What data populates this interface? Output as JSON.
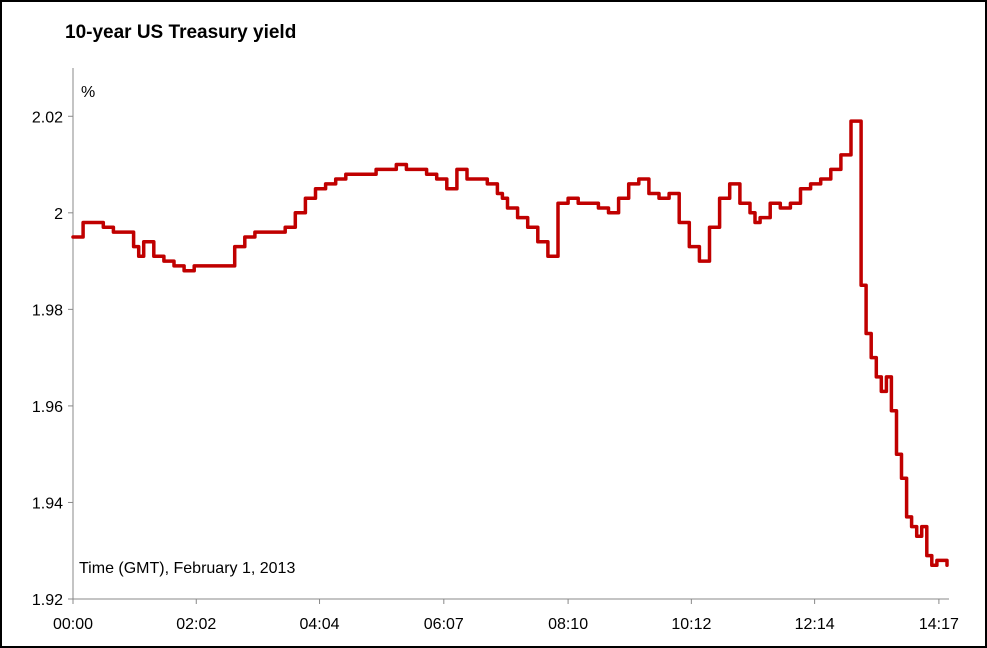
{
  "chart_data": {
    "type": "line",
    "title": "10-year US Treasury yield",
    "ylabel": "%",
    "xlabel": "",
    "annotation": "Time (GMT), February 1, 2013",
    "ylim": [
      1.92,
      2.03
    ],
    "yticks": [
      {
        "value": 1.92,
        "label": "1.92"
      },
      {
        "value": 1.94,
        "label": "1.94"
      },
      {
        "value": 1.96,
        "label": "1.96"
      },
      {
        "value": 1.98,
        "label": "1.98"
      },
      {
        "value": 2.0,
        "label": "2"
      },
      {
        "value": 2.02,
        "label": "2.02"
      }
    ],
    "xticks": [
      "00:00",
      "02:02",
      "04:04",
      "06:07",
      "08:10",
      "10:12",
      "12:14",
      "14:17"
    ],
    "xlim": [
      "00:00",
      "14:27"
    ],
    "grid": false,
    "color": "#c00000",
    "series": [
      {
        "x": [
          "00:00",
          "00:10",
          "00:20",
          "00:30",
          "00:40",
          "00:50",
          "01:00",
          "01:05",
          "01:10",
          "01:20",
          "01:30",
          "01:40",
          "01:50",
          "02:00",
          "02:10",
          "02:20",
          "02:30",
          "02:40",
          "02:50",
          "03:00",
          "03:10",
          "03:20",
          "03:30",
          "03:40",
          "03:50",
          "04:00",
          "04:10",
          "04:20",
          "04:30",
          "04:40",
          "04:50",
          "05:00",
          "05:10",
          "05:20",
          "05:30",
          "05:40",
          "05:50",
          "06:00",
          "06:10",
          "06:20",
          "06:30",
          "06:40",
          "06:50",
          "07:00",
          "07:05",
          "07:10",
          "07:20",
          "07:30",
          "07:40",
          "07:50",
          "08:00",
          "08:10",
          "08:20",
          "08:30",
          "08:40",
          "08:45",
          "08:50",
          "09:00",
          "09:10",
          "09:20",
          "09:30",
          "09:40",
          "09:50",
          "10:00",
          "10:10",
          "10:20",
          "10:30",
          "10:40",
          "10:50",
          "11:00",
          "11:10",
          "11:15",
          "11:20",
          "11:30",
          "11:40",
          "11:50",
          "12:00",
          "12:10",
          "12:20",
          "12:30",
          "12:40",
          "12:50",
          "13:00",
          "13:05",
          "13:10",
          "13:15",
          "13:20",
          "13:25",
          "13:30",
          "13:35",
          "13:40",
          "13:45",
          "13:50",
          "13:55",
          "14:00",
          "14:05",
          "14:10",
          "14:15",
          "14:20",
          "14:25"
        ],
        "values": [
          1.995,
          1.998,
          1.998,
          1.997,
          1.996,
          1.996,
          1.993,
          1.991,
          1.994,
          1.991,
          1.99,
          1.989,
          1.988,
          1.989,
          1.989,
          1.989,
          1.989,
          1.993,
          1.995,
          1.996,
          1.996,
          1.996,
          1.997,
          2.0,
          2.003,
          2.005,
          2.006,
          2.007,
          2.008,
          2.008,
          2.008,
          2.009,
          2.009,
          2.01,
          2.009,
          2.009,
          2.008,
          2.007,
          2.005,
          2.009,
          2.007,
          2.007,
          2.006,
          2.004,
          2.003,
          2.001,
          1.999,
          1.997,
          1.994,
          1.991,
          2.002,
          2.003,
          2.002,
          2.002,
          2.001,
          2.001,
          2.0,
          2.003,
          2.006,
          2.007,
          2.004,
          2.003,
          2.004,
          1.998,
          1.993,
          1.99,
          1.997,
          2.003,
          2.006,
          2.002,
          2.0,
          1.998,
          1.999,
          2.002,
          2.001,
          2.002,
          2.005,
          2.006,
          2.007,
          2.009,
          2.012,
          2.019,
          1.985,
          1.975,
          1.97,
          1.966,
          1.963,
          1.966,
          1.959,
          1.95,
          1.945,
          1.937,
          1.935,
          1.933,
          1.935,
          1.929,
          1.927,
          1.928,
          1.928,
          1.927
        ]
      }
    ]
  }
}
